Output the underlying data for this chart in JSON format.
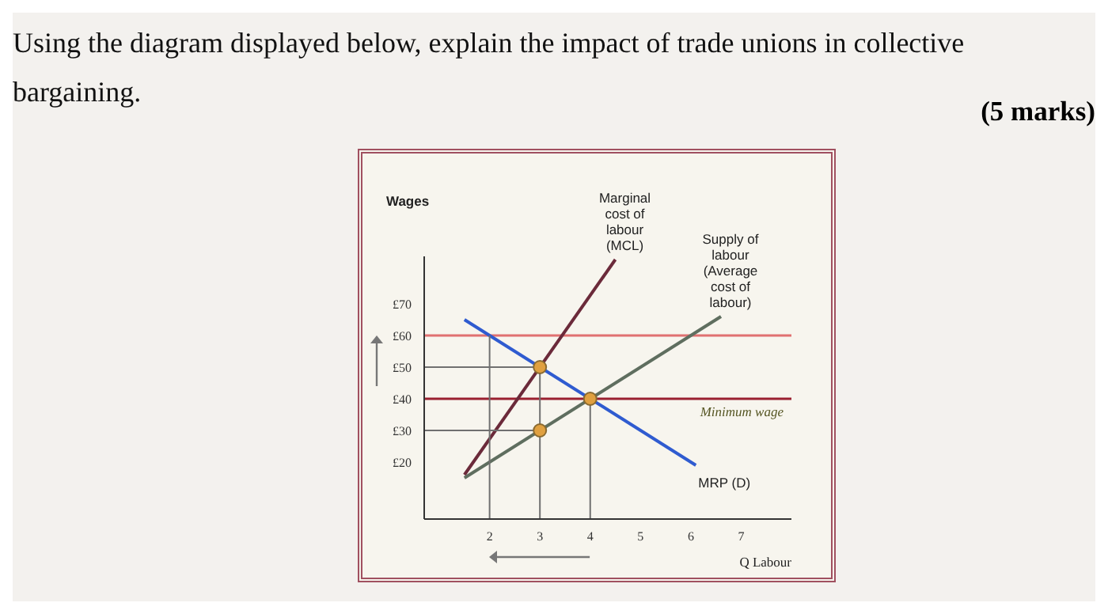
{
  "chart_data": {
    "type": "line",
    "title": "Using the diagram displayed below, explain the impact of trade unions in collective bargaining.",
    "annotations": [
      "(5 marks)"
    ],
    "ylabel": "Wages",
    "xlabel": "Q Labour",
    "xlim": [
      0.7,
      8
    ],
    "xticks": [
      2,
      3,
      4,
      5,
      6,
      7
    ],
    "ylim": [
      2,
      85
    ],
    "yticks": [
      {
        "value": 20,
        "label": "£20"
      },
      {
        "value": 30,
        "label": "£30"
      },
      {
        "value": 40,
        "label": "£40"
      },
      {
        "value": 50,
        "label": "£50"
      },
      {
        "value": 60,
        "label": "£60"
      },
      {
        "value": 70,
        "label": "£70"
      }
    ],
    "series": [
      {
        "name": "Marginal cost of labour (MCL)",
        "color": "#6b2a3a",
        "x": [
          1.5,
          4.5
        ],
        "values": [
          16,
          84
        ]
      },
      {
        "name": "Supply of labour (Average cost of labour)",
        "color": "#5f6e5f",
        "x": [
          1.5,
          6.6
        ],
        "values": [
          15,
          66
        ]
      },
      {
        "name": "MRP (D)",
        "color": "#2f5bd0",
        "x": [
          1.5,
          6.1
        ],
        "values": [
          65,
          19
        ]
      },
      {
        "type": "line",
        "color": "#707070",
        "x": [
          0.7,
          3,
          3
        ],
        "values": [
          50,
          50,
          2
        ]
      },
      {
        "type": "line",
        "color": "#707070",
        "x": [
          0.7,
          3
        ],
        "values": [
          30,
          30
        ]
      },
      {
        "type": "line",
        "color": "#707070",
        "x": [
          2,
          2
        ],
        "values": [
          60,
          2
        ]
      },
      {
        "type": "line",
        "color": "#707070",
        "x": [
          4,
          4
        ],
        "values": [
          40,
          2
        ]
      },
      {
        "type": "scatter",
        "color": "#e0a040",
        "x": [
          3,
          4,
          3
        ],
        "values": [
          50,
          40,
          30
        ]
      }
    ],
    "ref_lines": [
      {
        "axis": "y",
        "value": 60,
        "color": "#e07070"
      },
      {
        "axis": "y",
        "value": 40,
        "label": "Minimum wage",
        "color": "#9a2030"
      }
    ],
    "grid": false,
    "legend": false
  }
}
